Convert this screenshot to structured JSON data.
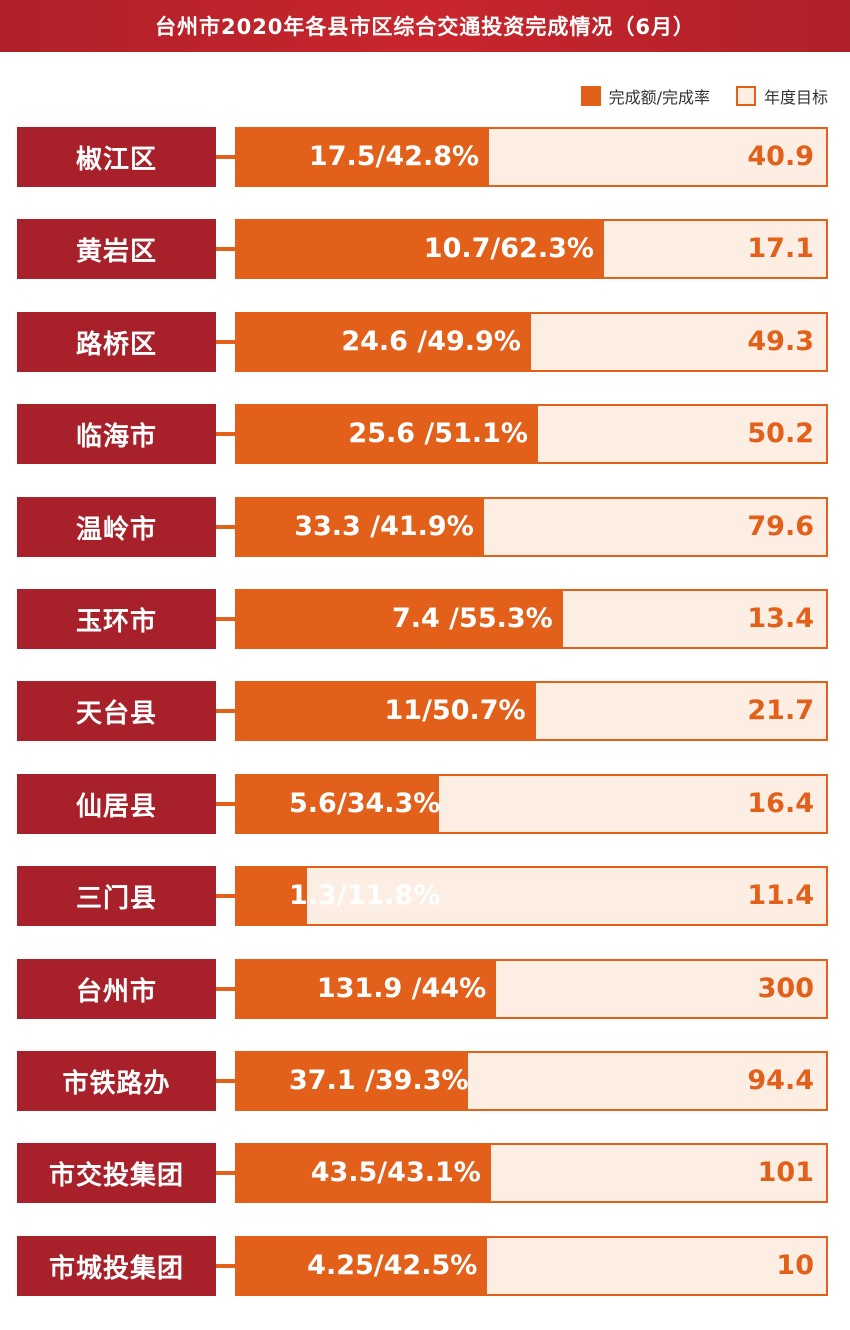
{
  "header": {
    "title": "台州市2020年各县市区综合交通投资完成情况（6月）"
  },
  "legend": {
    "completed": "完成额/完成率",
    "target": "年度目标"
  },
  "colors": {
    "title_bg": "#c8262c",
    "label_bg": "#a8202a",
    "completed_bar": "#e2601a",
    "target_bar_bg": "#fdeee4"
  },
  "chart_data": {
    "type": "bar",
    "orientation": "horizontal",
    "title": "台州市2020年各县市区综合交通投资完成情况（6月）",
    "legend": [
      "完成额/完成率",
      "年度目标"
    ],
    "legend_position": "top-right",
    "categories": [
      "椒江区",
      "黄岩区",
      "路桥区",
      "临海市",
      "温岭市",
      "玉环市",
      "天台县",
      "仙居县",
      "三门县",
      "台州市",
      "市铁路办",
      "市交投集团",
      "市城投集团"
    ],
    "completed": [
      17.5,
      10.7,
      24.6,
      25.6,
      33.3,
      7.4,
      11,
      5.6,
      1.3,
      131.9,
      37.1,
      43.5,
      4.25
    ],
    "rate_percent": [
      42.8,
      62.3,
      49.9,
      51.1,
      41.9,
      55.3,
      50.7,
      34.3,
      11.8,
      44,
      39.3,
      43.1,
      42.5
    ],
    "target": [
      40.9,
      17.1,
      49.3,
      50.2,
      79.6,
      13.4,
      21.7,
      16.4,
      11.4,
      300,
      94.4,
      101,
      10
    ],
    "completed_labels": [
      "17.5/42.8%",
      "10.7/62.3%",
      "24.6 /49.9%",
      "25.6 /51.1%",
      "33.3 /41.9%",
      "7.4 /55.3%",
      "11/50.7%",
      "5.6/34.3%",
      "1.3/11.8%",
      "131.9 /44%",
      "37.1 /39.3%",
      "43.5/43.1%",
      "4.25/42.5%"
    ],
    "target_labels": [
      "40.9",
      "17.1",
      "49.3",
      "50.2",
      "79.6",
      "13.4",
      "21.7",
      "16.4",
      "11.4",
      "300",
      "94.4",
      "101",
      "10"
    ],
    "grid": false
  }
}
